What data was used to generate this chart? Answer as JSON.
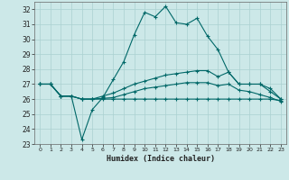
{
  "title": "",
  "xlabel": "Humidex (Indice chaleur)",
  "xlim": [
    -0.5,
    23.5
  ],
  "ylim": [
    23,
    32.5
  ],
  "yticks": [
    23,
    24,
    25,
    26,
    27,
    28,
    29,
    30,
    31,
    32
  ],
  "xticks": [
    0,
    1,
    2,
    3,
    4,
    5,
    6,
    7,
    8,
    9,
    10,
    11,
    12,
    13,
    14,
    15,
    16,
    17,
    18,
    19,
    20,
    21,
    22,
    23
  ],
  "bg_color": "#cce8e8",
  "grid_color": "#aad0d0",
  "line_color": "#006868",
  "lines": [
    {
      "x": [
        0,
        1,
        2,
        3,
        4,
        5,
        6,
        7,
        8,
        9,
        10,
        11,
        12,
        13,
        14,
        15,
        16,
        17,
        18,
        19,
        20,
        21,
        22,
        23
      ],
      "y": [
        27,
        27,
        26.2,
        26.2,
        23.3,
        25.3,
        26.1,
        27.3,
        28.5,
        30.3,
        31.8,
        31.5,
        32.2,
        31.1,
        31.0,
        31.4,
        30.2,
        29.3,
        27.8,
        27.0,
        27.0,
        27.0,
        26.5,
        26.0
      ]
    },
    {
      "x": [
        0,
        1,
        2,
        3,
        4,
        5,
        6,
        7,
        8,
        9,
        10,
        11,
        12,
        13,
        14,
        15,
        16,
        17,
        18,
        19,
        20,
        21,
        22,
        23
      ],
      "y": [
        27,
        27,
        26.2,
        26.2,
        26.0,
        26.0,
        26.0,
        26.0,
        26.0,
        26.0,
        26.0,
        26.0,
        26.0,
        26.0,
        26.0,
        26.0,
        26.0,
        26.0,
        26.0,
        26.0,
        26.0,
        26.0,
        26.0,
        25.9
      ]
    },
    {
      "x": [
        0,
        1,
        2,
        3,
        4,
        5,
        6,
        7,
        8,
        9,
        10,
        11,
        12,
        13,
        14,
        15,
        16,
        17,
        18,
        19,
        20,
        21,
        22,
        23
      ],
      "y": [
        27,
        27,
        26.2,
        26.2,
        26.0,
        26.0,
        26.2,
        26.4,
        26.7,
        27.0,
        27.2,
        27.4,
        27.6,
        27.7,
        27.8,
        27.9,
        27.9,
        27.5,
        27.8,
        27.0,
        27.0,
        27.0,
        26.7,
        26.0
      ]
    },
    {
      "x": [
        0,
        1,
        2,
        3,
        4,
        5,
        6,
        7,
        8,
        9,
        10,
        11,
        12,
        13,
        14,
        15,
        16,
        17,
        18,
        19,
        20,
        21,
        22,
        23
      ],
      "y": [
        27,
        27,
        26.2,
        26.2,
        26.0,
        26.0,
        26.05,
        26.1,
        26.3,
        26.5,
        26.7,
        26.8,
        26.9,
        27.0,
        27.1,
        27.1,
        27.1,
        26.9,
        27.0,
        26.6,
        26.5,
        26.3,
        26.1,
        25.85
      ]
    }
  ]
}
